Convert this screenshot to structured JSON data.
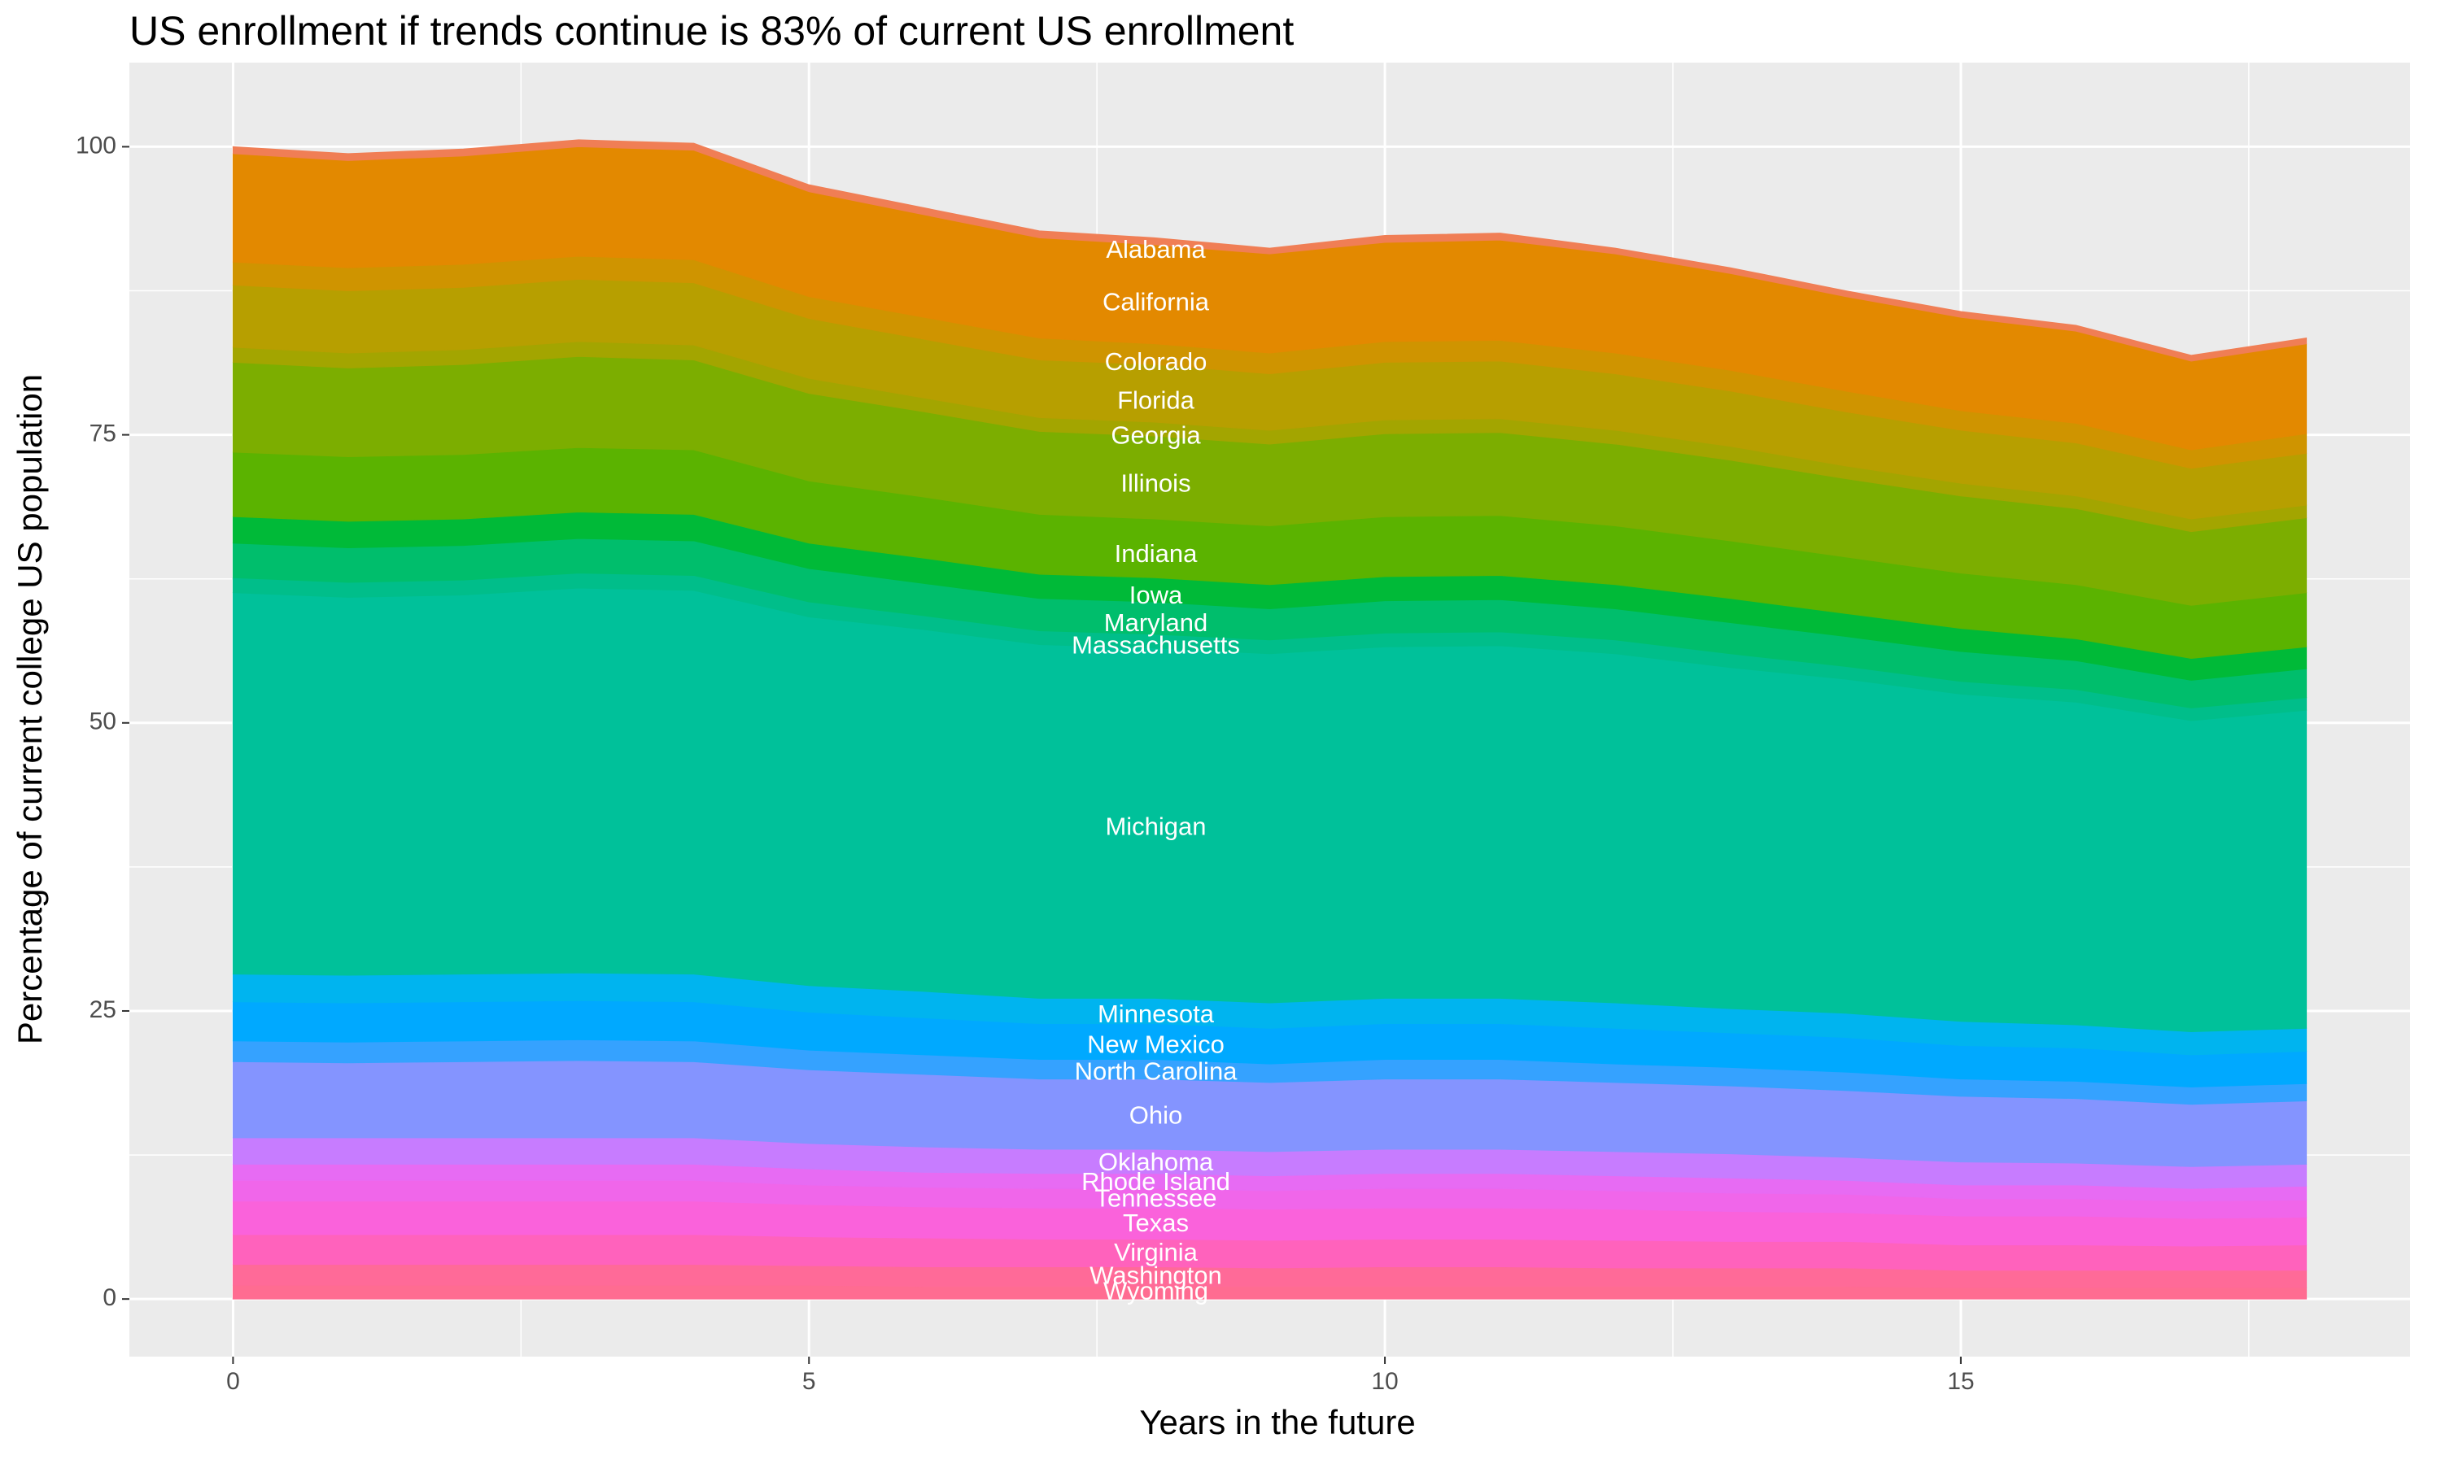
{
  "chart_data": {
    "type": "stacked_area",
    "title": "US enrollment if trends continue is 83% of current US enrollment",
    "x_label": "Years in the future",
    "y_label": "Percentage of current college US population",
    "x": [
      0,
      1,
      2,
      3,
      4,
      5,
      6,
      7,
      8,
      9,
      10,
      11,
      12,
      13,
      14,
      15,
      16,
      17,
      18
    ],
    "xlim": [
      -0.9,
      18.9
    ],
    "xticks": [
      0,
      5,
      10,
      15
    ],
    "ylim": [
      -5,
      107.3
    ],
    "yticks": [
      0,
      25,
      50,
      75,
      100
    ],
    "grid": true,
    "series": [
      {
        "name": "Wyoming",
        "color": "#FF6C91",
        "values": [
          1.2,
          1.2,
          1.2,
          1.2,
          1.2,
          1.2,
          1.1,
          1.1,
          1.1,
          1.1,
          1.1,
          1.1,
          1.1,
          1.1,
          1.1,
          1.0,
          1.0,
          1.0,
          1.0
        ]
      },
      {
        "name": "Washington",
        "color": "#FF6A98",
        "values": [
          1.8,
          1.8,
          1.8,
          1.8,
          1.8,
          1.7,
          1.7,
          1.7,
          1.7,
          1.6,
          1.7,
          1.7,
          1.6,
          1.6,
          1.6,
          1.5,
          1.5,
          1.5,
          1.5
        ]
      },
      {
        "name": "Virginia",
        "color": "#FF62BC",
        "values": [
          2.6,
          2.6,
          2.6,
          2.6,
          2.6,
          2.5,
          2.5,
          2.4,
          2.4,
          2.4,
          2.4,
          2.4,
          2.4,
          2.3,
          2.3,
          2.2,
          2.2,
          2.1,
          2.2
        ]
      },
      {
        "name": "Texas",
        "color": "#FA62DB",
        "values": [
          2.9,
          2.9,
          2.9,
          2.9,
          2.9,
          2.8,
          2.7,
          2.7,
          2.7,
          2.7,
          2.7,
          2.7,
          2.7,
          2.6,
          2.5,
          2.5,
          2.5,
          2.4,
          2.4
        ]
      },
      {
        "name": "Tennessee",
        "color": "#F066EA",
        "values": [
          1.8,
          1.8,
          1.8,
          1.8,
          1.8,
          1.7,
          1.7,
          1.7,
          1.7,
          1.6,
          1.7,
          1.7,
          1.6,
          1.6,
          1.6,
          1.5,
          1.5,
          1.5,
          1.5
        ]
      },
      {
        "name": "Rhode Island",
        "color": "#E76BF3",
        "values": [
          1.4,
          1.4,
          1.4,
          1.4,
          1.4,
          1.4,
          1.3,
          1.3,
          1.3,
          1.3,
          1.3,
          1.3,
          1.3,
          1.3,
          1.2,
          1.2,
          1.2,
          1.1,
          1.2
        ]
      },
      {
        "name": "Oklahoma",
        "color": "#C77CFF",
        "values": [
          2.3,
          2.3,
          2.3,
          2.3,
          2.3,
          2.2,
          2.2,
          2.1,
          2.1,
          2.1,
          2.1,
          2.1,
          2.1,
          2.1,
          2.0,
          2.0,
          1.9,
          1.9,
          1.9
        ]
      },
      {
        "name": "Ohio",
        "color": "#8494FF",
        "values": [
          6.6,
          6.5,
          6.6,
          6.7,
          6.6,
          6.4,
          6.3,
          6.1,
          6.1,
          6.0,
          6.1,
          6.1,
          6.0,
          5.9,
          5.8,
          5.7,
          5.6,
          5.4,
          5.5
        ]
      },
      {
        "name": "North Carolina",
        "color": "#35A2FF",
        "values": [
          1.8,
          1.8,
          1.8,
          1.8,
          1.8,
          1.7,
          1.7,
          1.7,
          1.7,
          1.6,
          1.7,
          1.7,
          1.6,
          1.6,
          1.6,
          1.5,
          1.5,
          1.5,
          1.5
        ]
      },
      {
        "name": "New Mexico",
        "color": "#00A9FF",
        "values": [
          3.4,
          3.4,
          3.4,
          3.4,
          3.4,
          3.3,
          3.2,
          3.1,
          3.1,
          3.1,
          3.1,
          3.1,
          3.1,
          3.0,
          3.0,
          2.9,
          2.9,
          2.8,
          2.8
        ]
      },
      {
        "name": "Minnesota",
        "color": "#00B4EF",
        "values": [
          2.4,
          2.4,
          2.4,
          2.4,
          2.4,
          2.3,
          2.3,
          2.2,
          2.2,
          2.2,
          2.2,
          2.2,
          2.2,
          2.1,
          2.1,
          2.1,
          2.0,
          2.0,
          2.0
        ]
      },
      {
        "name": "Michigan",
        "color": "#00C19A",
        "values": [
          33.1,
          32.8,
          32.9,
          33.4,
          33.3,
          32.0,
          31.4,
          30.7,
          30.4,
          30.3,
          30.5,
          30.6,
          30.3,
          29.6,
          29.0,
          28.4,
          28.0,
          27.0,
          27.6
        ]
      },
      {
        "name": "Massachusetts",
        "color": "#00BE8A",
        "values": [
          1.3,
          1.3,
          1.3,
          1.3,
          1.3,
          1.3,
          1.2,
          1.2,
          1.2,
          1.2,
          1.2,
          1.2,
          1.2,
          1.2,
          1.1,
          1.1,
          1.1,
          1.1,
          1.1
        ]
      },
      {
        "name": "Maryland",
        "color": "#00BE6C",
        "values": [
          3.0,
          3.0,
          3.0,
          3.0,
          3.0,
          2.9,
          2.8,
          2.8,
          2.8,
          2.7,
          2.8,
          2.8,
          2.7,
          2.7,
          2.6,
          2.6,
          2.5,
          2.4,
          2.5
        ]
      },
      {
        "name": "Iowa",
        "color": "#00BA38",
        "values": [
          2.3,
          2.3,
          2.3,
          2.3,
          2.3,
          2.2,
          2.2,
          2.1,
          2.1,
          2.1,
          2.1,
          2.1,
          2.1,
          2.1,
          2.0,
          2.0,
          1.9,
          1.9,
          1.9
        ]
      },
      {
        "name": "Indiana",
        "color": "#5BB300",
        "values": [
          5.6,
          5.6,
          5.6,
          5.6,
          5.6,
          5.4,
          5.3,
          5.2,
          5.1,
          5.1,
          5.2,
          5.2,
          5.1,
          5.0,
          4.9,
          4.8,
          4.7,
          4.6,
          4.7
        ]
      },
      {
        "name": "Illinois",
        "color": "#7CAE00",
        "values": [
          7.8,
          7.7,
          7.8,
          7.9,
          7.8,
          7.6,
          7.4,
          7.2,
          7.2,
          7.1,
          7.2,
          7.2,
          7.1,
          7.0,
          6.8,
          6.7,
          6.6,
          6.4,
          6.5
        ]
      },
      {
        "name": "Georgia",
        "color": "#A3A500",
        "values": [
          1.3,
          1.3,
          1.3,
          1.3,
          1.3,
          1.3,
          1.2,
          1.2,
          1.2,
          1.2,
          1.2,
          1.2,
          1.2,
          1.2,
          1.1,
          1.1,
          1.1,
          1.1,
          1.1
        ]
      },
      {
        "name": "Florida",
        "color": "#B79F00",
        "values": [
          5.4,
          5.4,
          5.4,
          5.4,
          5.4,
          5.2,
          5.1,
          5.0,
          5.0,
          4.9,
          5.0,
          5.0,
          4.9,
          4.8,
          4.7,
          4.6,
          4.6,
          4.4,
          4.5
        ]
      },
      {
        "name": "Colorado",
        "color": "#CF9400",
        "values": [
          2.0,
          2.0,
          2.0,
          2.0,
          2.0,
          1.9,
          1.9,
          1.9,
          1.8,
          1.8,
          1.8,
          1.8,
          1.8,
          1.8,
          1.8,
          1.7,
          1.7,
          1.6,
          1.7
        ]
      },
      {
        "name": "California",
        "color": "#E38900",
        "values": [
          9.4,
          9.3,
          9.4,
          9.5,
          9.5,
          9.1,
          8.9,
          8.7,
          8.6,
          8.6,
          8.6,
          8.7,
          8.6,
          8.4,
          8.2,
          8.1,
          8.0,
          7.7,
          7.8
        ]
      },
      {
        "name": "Alabama",
        "color": "#F07E55",
        "values": [
          0.6,
          0.6,
          0.6,
          0.6,
          0.6,
          0.6,
          0.6,
          0.6,
          0.6,
          0.5,
          0.6,
          0.6,
          0.5,
          0.5,
          0.5,
          0.5,
          0.5,
          0.5,
          0.5
        ]
      }
    ]
  }
}
